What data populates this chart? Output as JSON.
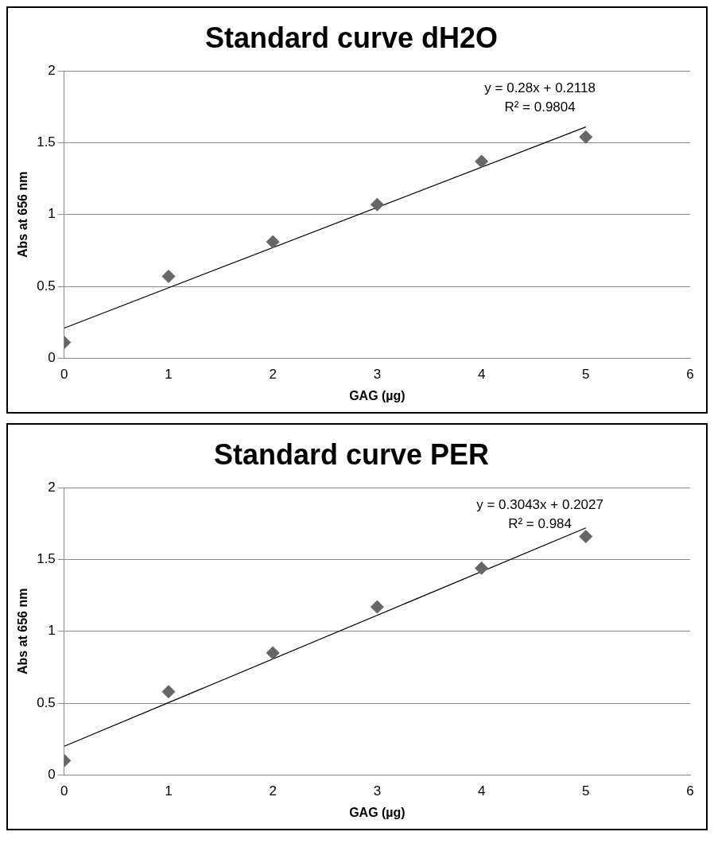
{
  "chart_data": [
    {
      "type": "scatter",
      "title": "Standard curve dH2O",
      "xlabel": "GAG (µg)",
      "ylabel": "Abs at 656 nm",
      "xlim": [
        0,
        6
      ],
      "xticks": [
        0,
        1,
        2,
        3,
        4,
        5,
        6
      ],
      "ylim": [
        0,
        2
      ],
      "yticks": [
        0,
        0.5,
        1,
        1.5,
        2
      ],
      "grid": "y",
      "annotations": [
        "y = 0.28x + 0.2118",
        "R² = 0.9804"
      ],
      "series": [
        {
          "type": "scatter",
          "marker": "diamond",
          "color": "#666666",
          "x": [
            0,
            1,
            2,
            3,
            4,
            5
          ],
          "values": [
            0.11,
            0.57,
            0.81,
            1.07,
            1.37,
            1.54
          ]
        },
        {
          "type": "line",
          "color": "#000000",
          "line_style": "solid",
          "x": [
            0,
            5
          ],
          "values": [
            0.21,
            1.61
          ]
        }
      ]
    },
    {
      "type": "scatter",
      "title": "Standard curve PER",
      "xlabel": "GAG (µg)",
      "ylabel": "Abs at 656 nm",
      "xlim": [
        0,
        6
      ],
      "xticks": [
        0,
        1,
        2,
        3,
        4,
        5,
        6
      ],
      "ylim": [
        0,
        2
      ],
      "yticks": [
        0,
        0.5,
        1,
        1.5,
        2
      ],
      "grid": "y",
      "annotations": [
        "y = 0.3043x + 0.2027",
        "R² = 0.984"
      ],
      "series": [
        {
          "type": "scatter",
          "marker": "diamond",
          "color": "#666666",
          "x": [
            0,
            1,
            2,
            3,
            4,
            5
          ],
          "values": [
            0.1,
            0.58,
            0.85,
            1.17,
            1.44,
            1.66
          ]
        },
        {
          "type": "line",
          "color": "#000000",
          "line_style": "solid",
          "x": [
            0,
            5
          ],
          "values": [
            0.2,
            1.72
          ]
        }
      ]
    }
  ]
}
